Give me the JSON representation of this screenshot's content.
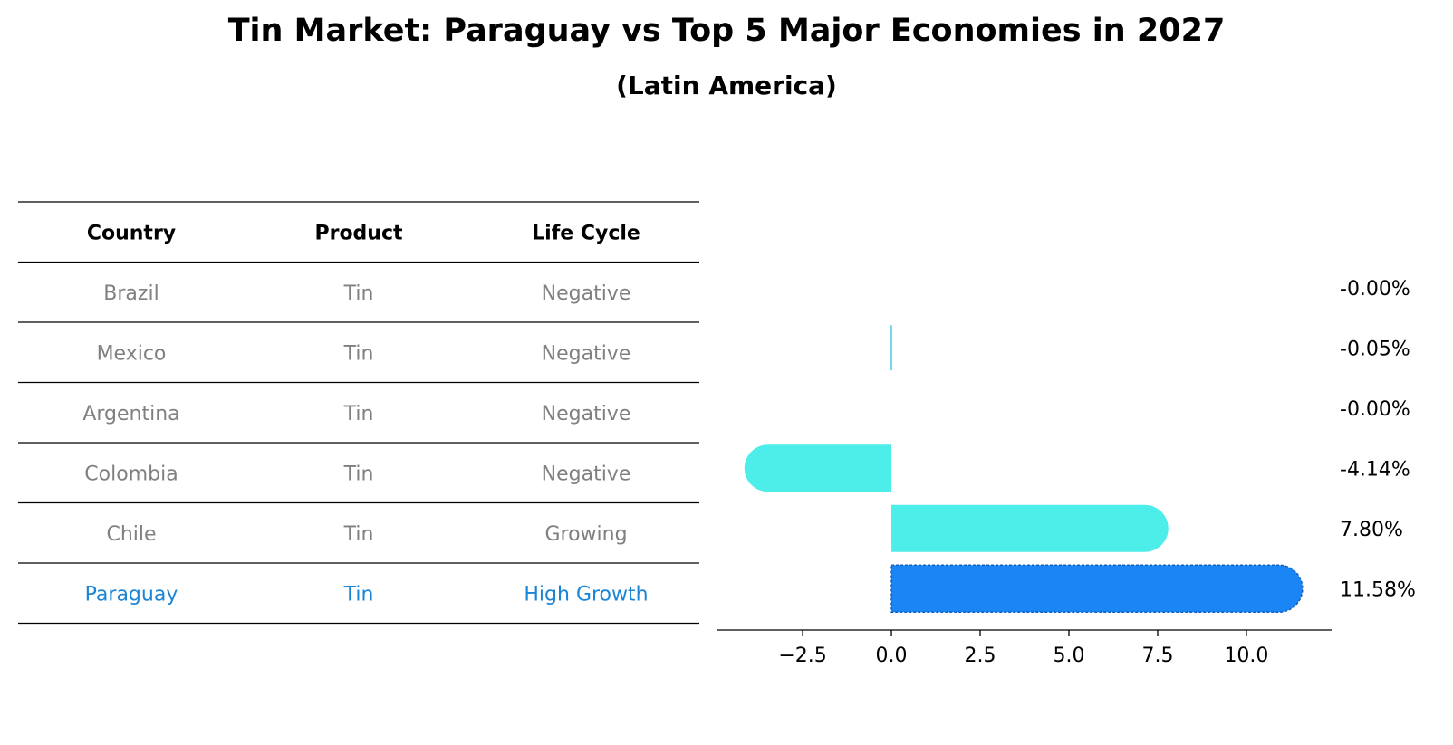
{
  "title": "Tin Market: Paraguay vs Top 5 Major Economies in 2027",
  "subtitle": "(Latin America)",
  "colors": {
    "muted_text": "#808080",
    "highlight_text": "#1a85d6",
    "bar_default": "#4dede9",
    "bar_highlight": "#1a85f5",
    "bar_small": "#78d4f0"
  },
  "table": {
    "headers": [
      "Country",
      "Product",
      "Life Cycle"
    ],
    "rows": [
      {
        "country": "Brazil",
        "product": "Tin",
        "life_cycle": "Negative",
        "highlight": false
      },
      {
        "country": "Mexico",
        "product": "Tin",
        "life_cycle": "Negative",
        "highlight": false
      },
      {
        "country": "Argentina",
        "product": "Tin",
        "life_cycle": "Negative",
        "highlight": false
      },
      {
        "country": "Colombia",
        "product": "Tin",
        "life_cycle": "Negative",
        "highlight": false
      },
      {
        "country": "Chile",
        "product": "Tin",
        "life_cycle": "Growing",
        "highlight": false
      },
      {
        "country": "Paraguay",
        "product": "Tin",
        "life_cycle": "High Growth",
        "highlight": true
      }
    ]
  },
  "chart_data": {
    "type": "bar",
    "orientation": "horizontal",
    "categories": [
      "Brazil",
      "Mexico",
      "Argentina",
      "Colombia",
      "Chile",
      "Paraguay"
    ],
    "values": [
      -0.0,
      -0.05,
      -0.0,
      -4.14,
      7.8,
      11.58
    ],
    "value_labels": [
      "-0.00%",
      "-0.05%",
      "-0.00%",
      "-4.14%",
      "7.80%",
      "11.58%"
    ],
    "highlight": "Paraguay",
    "xlim": [
      -4.9,
      12.4
    ],
    "xticks": [
      -2.5,
      0.0,
      2.5,
      5.0,
      7.5,
      10.0
    ],
    "xtick_labels": [
      "−2.5",
      "0.0",
      "2.5",
      "5.0",
      "7.5",
      "10.0"
    ],
    "grid": false
  }
}
